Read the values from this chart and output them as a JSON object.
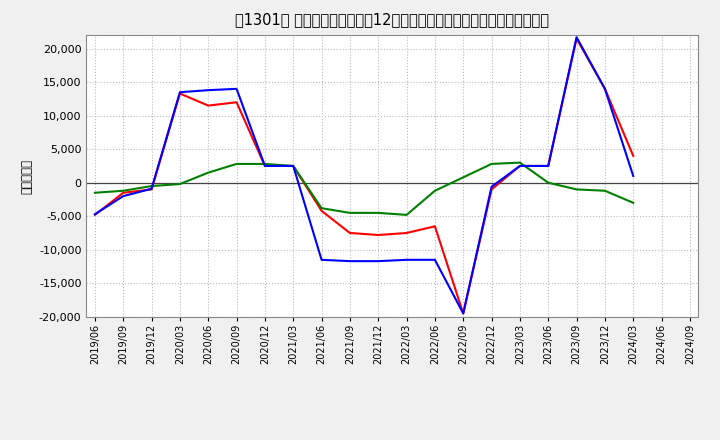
{
  "title": "［1301］ キャッシュフローの12か月移動合計の対前年同期増減額の推移",
  "ylabel": "（百万円）",
  "ylim": [
    -20000,
    22000
  ],
  "yticks": [
    -20000,
    -15000,
    -10000,
    -5000,
    0,
    5000,
    10000,
    15000,
    20000
  ],
  "dates": [
    "2019/06",
    "2019/09",
    "2019/12",
    "2020/03",
    "2020/06",
    "2020/09",
    "2020/12",
    "2021/03",
    "2021/06",
    "2021/09",
    "2021/12",
    "2022/03",
    "2022/06",
    "2022/09",
    "2022/12",
    "2023/03",
    "2023/06",
    "2023/09",
    "2023/12",
    "2024/03",
    "2024/06",
    "2024/09"
  ],
  "operating_cf": [
    -4800,
    -1500,
    -1000,
    13300,
    11500,
    12000,
    2500,
    2500,
    -4200,
    -7500,
    -7800,
    -7500,
    -6500,
    -19500,
    -1000,
    2500,
    2500,
    21500,
    14000,
    4000,
    null,
    null
  ],
  "investing_cf": [
    -1500,
    -1200,
    -500,
    -200,
    1500,
    2800,
    2800,
    2500,
    -3800,
    -4500,
    -4500,
    -4800,
    -1200,
    800,
    2800,
    3000,
    0,
    -1000,
    -1200,
    -3000,
    null,
    null
  ],
  "free_cf": [
    -4700,
    -2000,
    -900,
    13500,
    13800,
    14000,
    2500,
    2500,
    -11500,
    -11700,
    -11700,
    -11500,
    -11500,
    -19500,
    -600,
    2500,
    2500,
    21700,
    14000,
    1000,
    null,
    null
  ],
  "line_colors": {
    "operating": "#ff0000",
    "investing": "#008000",
    "free": "#0000ff"
  },
  "bg_color": "#f0f0f0",
  "plot_bg_color": "#ffffff",
  "grid_color": "#bbbbbb"
}
